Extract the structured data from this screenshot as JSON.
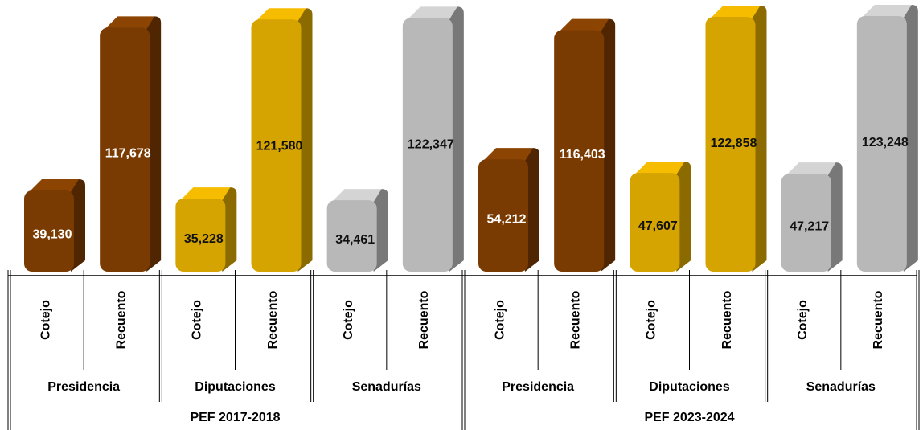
{
  "chart_data": {
    "type": "bar3d",
    "categories": [
      "Cotejo",
      "Recuento",
      "Cotejo",
      "Recuento",
      "Cotejo",
      "Recuento",
      "Cotejo",
      "Recuento",
      "Cotejo",
      "Recuento",
      "Cotejo",
      "Recuento"
    ],
    "groups": [
      "Presidencia",
      "Diputaciones",
      "Senadurías",
      "Presidencia",
      "Diputaciones",
      "Senadurías"
    ],
    "periods": [
      "PEF 2017-2018",
      "PEF 2023-2024"
    ],
    "values": [
      39130,
      117678,
      35228,
      121580,
      34461,
      122347,
      54212,
      116403,
      47607,
      122858,
      47217,
      123248
    ],
    "value_labels": [
      "39,130",
      "117,678",
      "35,228",
      "121,580",
      "34,461",
      "122,347",
      "54,212",
      "116,403",
      "47,607",
      "122,858",
      "47,217",
      "123,248"
    ],
    "colors": [
      "#7a3b02",
      "#7a3b02",
      "#d6a400",
      "#d6a400",
      "#b8b8b8",
      "#b8b8b8",
      "#7a3b02",
      "#7a3b02",
      "#d6a400",
      "#d6a400",
      "#b8b8b8",
      "#b8b8b8"
    ]
  }
}
